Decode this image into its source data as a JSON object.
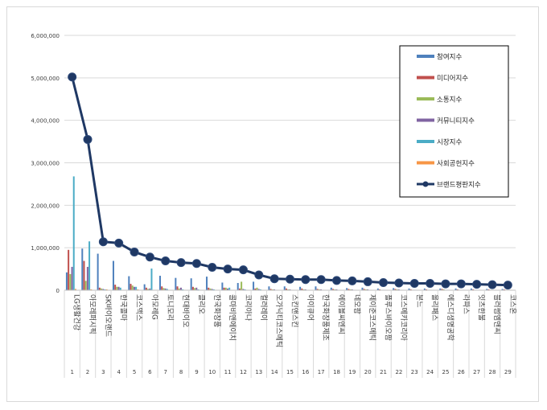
{
  "chart_data": {
    "type": "bar",
    "title": "",
    "xlabel": "",
    "ylabel": "",
    "ylim": [
      0,
      6000000
    ],
    "yticks": [
      "0",
      "1,000,000",
      "2,000,000",
      "3,000,000",
      "4,000,000",
      "5,000,000",
      "6,000,000"
    ],
    "grid": true,
    "legend_position": "top-right",
    "categories": [
      "LG생활건강",
      "아모레퍼시픽",
      "SK바이오랜드",
      "한국콜마",
      "코스맥스",
      "아모레G",
      "토니모리",
      "현대바이오",
      "클리오",
      "한국화장품",
      "콜마비앤에이치",
      "코리아나",
      "컬러레이",
      "오가닉티코스메틱",
      "스킨앤스킨",
      "아이큐어",
      "한국화장품제조",
      "에이블씨엔씨",
      "네오팜",
      "제이준코스메틱",
      "플루스바이오팜",
      "코스메카코리아",
      "본느",
      "올리패스",
      "에스디생명공학",
      "라파스",
      "잇츠한불",
      "블러썸엠앤씨",
      "코스온"
    ],
    "category_numbers": [
      "1",
      "2",
      "3",
      "4",
      "5",
      "6",
      "7",
      "8",
      "9",
      "10",
      "11",
      "12",
      "13",
      "14",
      "15",
      "16",
      "17",
      "18",
      "19",
      "20",
      "21",
      "22",
      "23",
      "24",
      "25",
      "26",
      "27",
      "28",
      "29"
    ],
    "series": [
      {
        "name": "참여지수",
        "kind": "bar",
        "color": "#4f81bd",
        "values": [
          420000,
          980000,
          860000,
          690000,
          330000,
          140000,
          340000,
          290000,
          280000,
          320000,
          180000,
          170000,
          200000,
          90000,
          90000,
          80000,
          90000,
          60000,
          50000,
          60000,
          40000,
          50000,
          40000,
          40000,
          40000,
          40000,
          40000,
          30000,
          30000
        ]
      },
      {
        "name": "미디어지수",
        "kind": "bar",
        "color": "#c0504d",
        "values": [
          950000,
          690000,
          60000,
          130000,
          150000,
          60000,
          90000,
          90000,
          80000,
          60000,
          60000,
          40000,
          40000,
          30000,
          40000,
          40000,
          30000,
          30000,
          30000,
          30000,
          20000,
          30000,
          20000,
          20000,
          30000,
          20000,
          20000,
          20000,
          20000
        ]
      },
      {
        "name": "소통지수",
        "kind": "bar",
        "color": "#9bbb59",
        "values": [
          380000,
          220000,
          40000,
          80000,
          110000,
          30000,
          50000,
          40000,
          50000,
          40000,
          60000,
          200000,
          60000,
          20000,
          20000,
          20000,
          20000,
          20000,
          20000,
          20000,
          10000,
          20000,
          10000,
          10000,
          20000,
          10000,
          10000,
          10000,
          10000
        ]
      },
      {
        "name": "커뮤니티지수",
        "kind": "bar",
        "color": "#8064a2",
        "values": [
          550000,
          550000,
          30000,
          80000,
          80000,
          40000,
          40000,
          60000,
          60000,
          30000,
          40000,
          30000,
          30000,
          20000,
          20000,
          20000,
          20000,
          20000,
          20000,
          20000,
          10000,
          20000,
          10000,
          10000,
          10000,
          10000,
          10000,
          10000,
          10000
        ]
      },
      {
        "name": "시장지수",
        "kind": "bar",
        "color": "#4bacc6",
        "values": [
          2680000,
          1150000,
          20000,
          60000,
          80000,
          510000,
          30000,
          20000,
          20000,
          20000,
          60000,
          20000,
          20000,
          10000,
          10000,
          10000,
          10000,
          10000,
          10000,
          10000,
          10000,
          10000,
          10000,
          10000,
          10000,
          10000,
          10000,
          10000,
          10000
        ]
      },
      {
        "name": "사회공헌지수",
        "kind": "bar",
        "color": "#f79646",
        "values": [
          30000,
          20000,
          20000,
          10000,
          20000,
          10000,
          10000,
          10000,
          10000,
          10000,
          10000,
          10000,
          10000,
          10000,
          10000,
          10000,
          10000,
          10000,
          10000,
          10000,
          10000,
          10000,
          10000,
          10000,
          10000,
          10000,
          10000,
          10000,
          10000
        ]
      },
      {
        "name": "브랜드평판지수",
        "kind": "line",
        "color": "#1f3864",
        "values": [
          5020000,
          3550000,
          1140000,
          1110000,
          900000,
          780000,
          690000,
          650000,
          630000,
          540000,
          500000,
          480000,
          360000,
          270000,
          260000,
          250000,
          250000,
          230000,
          220000,
          200000,
          180000,
          170000,
          160000,
          160000,
          150000,
          150000,
          140000,
          130000,
          120000
        ]
      }
    ]
  }
}
